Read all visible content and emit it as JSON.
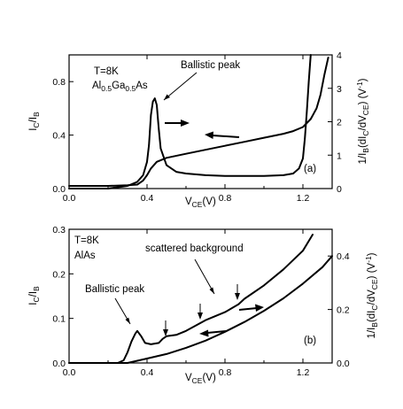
{
  "chart_data": [
    {
      "panel": "(a)",
      "type": "line",
      "annotations": {
        "temperature": "T=8K",
        "material": {
          "a": "Al",
          "a_sub": "0.5",
          "b": "Ga",
          "b_sub": "0.5",
          "c": "As"
        },
        "peak": "Ballistic peak",
        "panel_tag": "(a)"
      },
      "xlabel": {
        "main": "V",
        "sub": "CE",
        "unit": "(V)"
      },
      "ylabel": {
        "main": "I",
        "sub1": "C",
        "mid": "/I",
        "sub2": "B"
      },
      "y2label": "1/I_B(dI_C/dV_CE) (V^-1)",
      "y2label_parts": {
        "a": "1/I",
        "a_sub": "B",
        "b": "(dI",
        "b_sub": "C",
        "c": "/dV",
        "c_sub": "CE",
        "d": ") (V",
        "d_sup": "-1",
        "e": ")"
      },
      "xlim": [
        0,
        1.35
      ],
      "ylim": [
        0,
        1.0
      ],
      "y2lim": [
        0,
        4
      ],
      "xticks": [
        "0.0",
        "0.4",
        "0.8",
        "1.2"
      ],
      "xtick_values": [
        0.0,
        0.4,
        0.8,
        1.2
      ],
      "yticks": [
        "0.0",
        "0.4",
        "0.8"
      ],
      "ytick_values": [
        0.0,
        0.4,
        0.8
      ],
      "y2ticks": [
        "0",
        "1",
        "2",
        "3",
        "4"
      ],
      "y2tick_values": [
        0,
        1,
        2,
        3,
        4
      ],
      "series": [
        {
          "axis": "left",
          "x": [
            0.0,
            0.1,
            0.2,
            0.3,
            0.35,
            0.38,
            0.4,
            0.42,
            0.45,
            0.5,
            0.6,
            0.7,
            0.8,
            0.9,
            1.0,
            1.1,
            1.15,
            1.2,
            1.24,
            1.27,
            1.29,
            1.31,
            1.33
          ],
          "y": [
            0.02,
            0.02,
            0.02,
            0.025,
            0.03,
            0.06,
            0.1,
            0.15,
            0.2,
            0.23,
            0.26,
            0.29,
            0.32,
            0.35,
            0.38,
            0.41,
            0.43,
            0.46,
            0.52,
            0.6,
            0.7,
            0.85,
            0.98
          ]
        },
        {
          "axis": "right",
          "x": [
            0.0,
            0.1,
            0.2,
            0.3,
            0.35,
            0.38,
            0.4,
            0.41,
            0.42,
            0.43,
            0.44,
            0.45,
            0.46,
            0.47,
            0.5,
            0.55,
            0.6,
            0.7,
            0.8,
            0.9,
            1.0,
            1.1,
            1.15,
            1.18,
            1.2,
            1.21,
            1.22,
            1.23,
            1.24
          ],
          "y": [
            0.0,
            0.0,
            0.0,
            0.08,
            0.2,
            0.4,
            0.8,
            1.3,
            2.2,
            2.6,
            2.7,
            2.5,
            1.8,
            1.2,
            0.7,
            0.5,
            0.45,
            0.4,
            0.38,
            0.38,
            0.38,
            0.4,
            0.45,
            0.6,
            0.9,
            1.5,
            2.3,
            3.2,
            4.0
          ]
        }
      ]
    },
    {
      "panel": "(b)",
      "type": "line",
      "annotations": {
        "temperature": "T=8K",
        "material": "AlAs",
        "peak": "Ballistic peak",
        "background": "scattered background",
        "panel_tag": "(b)"
      },
      "xlabel": {
        "main": "V",
        "sub": "CE",
        "unit": "(V)"
      },
      "ylabel": {
        "main": "I",
        "sub1": "C",
        "mid": "/I",
        "sub2": "B"
      },
      "y2label": "1/I_B(dI_C/dV_CE) (V^-1)",
      "y2label_parts": {
        "a": "1/I",
        "a_sub": "B",
        "b": "(dI",
        "b_sub": "C",
        "c": "/dV",
        "c_sub": "CE",
        "d": ") (V",
        "d_sup": "-1",
        "e": ")"
      },
      "xlim": [
        0,
        1.35
      ],
      "ylim": [
        0,
        0.3
      ],
      "y2lim": [
        0,
        0.5
      ],
      "xticks": [
        "0.0",
        "0.4",
        "0.8",
        "1.2"
      ],
      "xtick_values": [
        0.0,
        0.4,
        0.8,
        1.2
      ],
      "yticks": [
        "0.0",
        "0.1",
        "0.2",
        "0.3"
      ],
      "ytick_values": [
        0.0,
        0.1,
        0.2,
        0.3
      ],
      "y2ticks": [
        "0.0",
        "0.2",
        "0.4"
      ],
      "y2tick_values": [
        0.0,
        0.2,
        0.4
      ],
      "series": [
        {
          "axis": "left",
          "x": [
            0.0,
            0.3,
            0.4,
            0.5,
            0.6,
            0.7,
            0.8,
            0.9,
            1.0,
            1.1,
            1.2,
            1.3,
            1.35
          ],
          "y": [
            0.0,
            0.0,
            0.01,
            0.02,
            0.034,
            0.05,
            0.07,
            0.092,
            0.117,
            0.145,
            0.178,
            0.215,
            0.24
          ]
        },
        {
          "axis": "right",
          "x": [
            0.0,
            0.25,
            0.28,
            0.3,
            0.32,
            0.34,
            0.35,
            0.37,
            0.39,
            0.42,
            0.46,
            0.48,
            0.5,
            0.55,
            0.6,
            0.65,
            0.7,
            0.8,
            0.87,
            0.9,
            1.0,
            1.1,
            1.2,
            1.25
          ],
          "y": [
            0.0,
            0.0,
            0.01,
            0.04,
            0.08,
            0.11,
            0.12,
            0.1,
            0.075,
            0.07,
            0.075,
            0.09,
            0.1,
            0.105,
            0.12,
            0.14,
            0.16,
            0.19,
            0.22,
            0.24,
            0.29,
            0.35,
            0.42,
            0.48
          ]
        }
      ]
    }
  ]
}
